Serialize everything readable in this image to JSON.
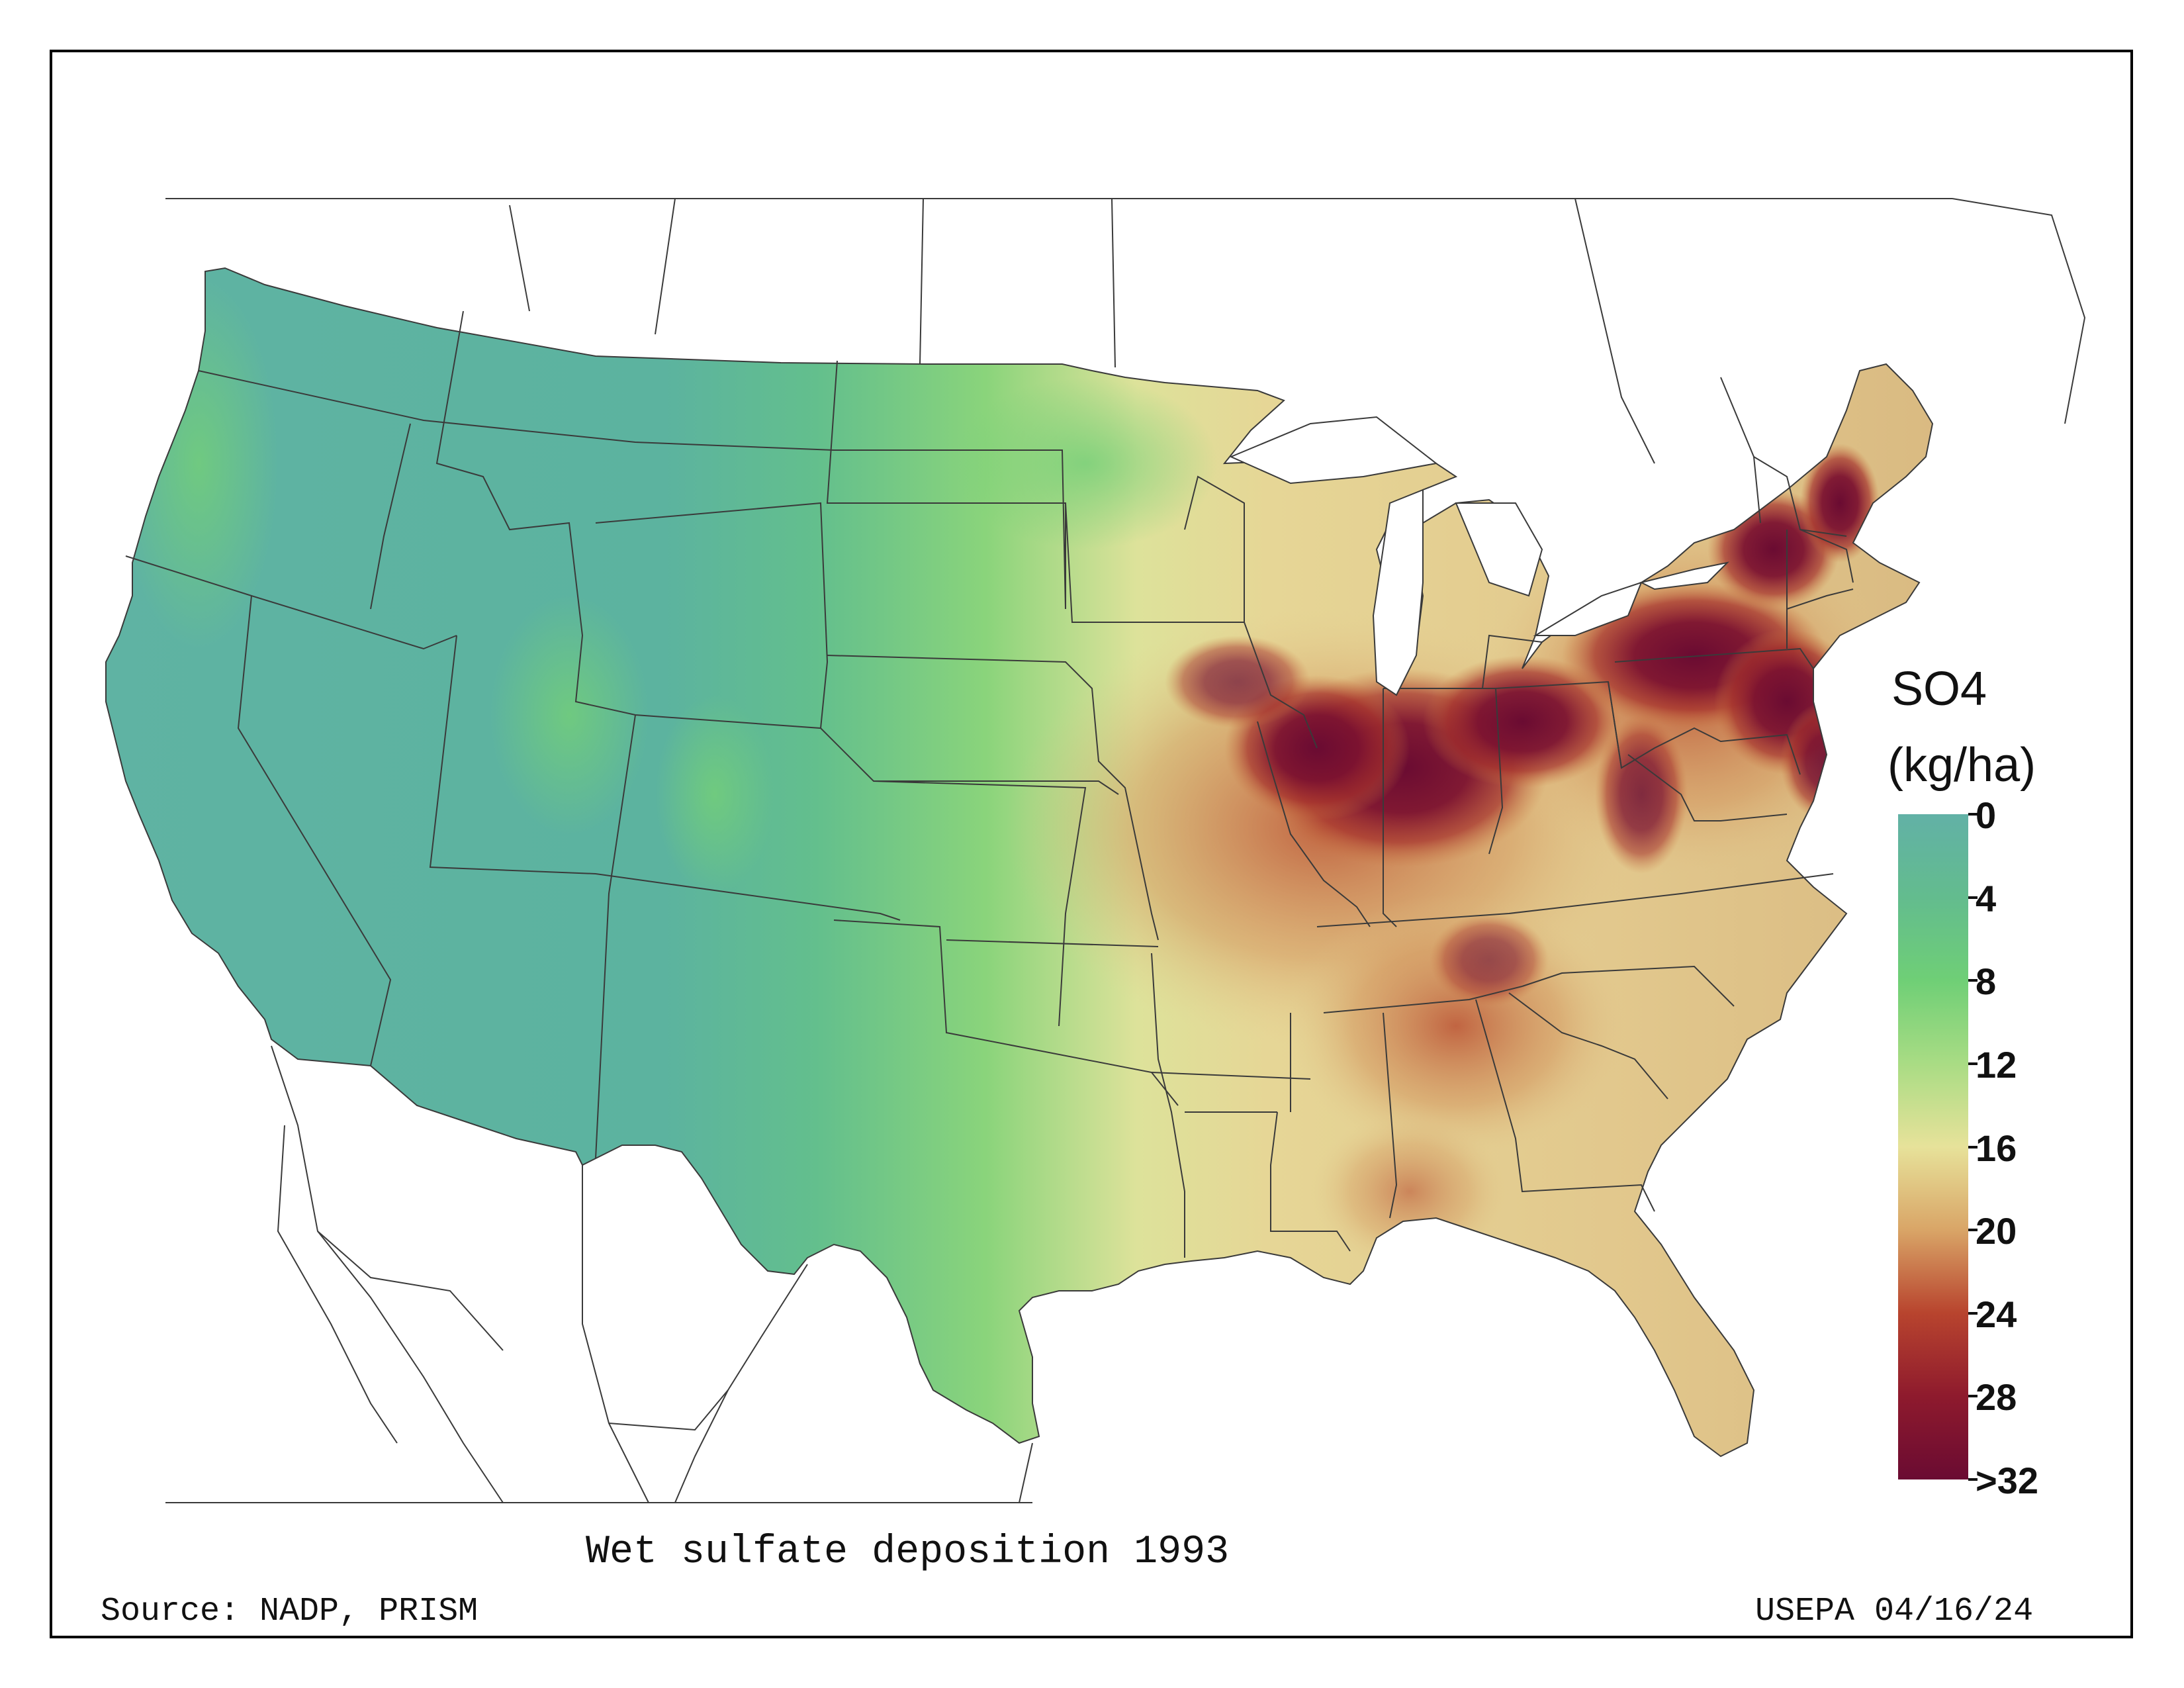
{
  "map": {
    "title": "Wet sulfate deposition 1993",
    "source": "Source: NADP, PRISM",
    "credit": "USEPA 04/16/24",
    "region": "Contiguous United States"
  },
  "legend": {
    "title_line1": "SO4",
    "title_line2": "(kg/ha)",
    "ticks": [
      "0",
      "4",
      "8",
      "12",
      "16",
      "20",
      "24",
      "28",
      ">32"
    ],
    "color_stops": [
      "#62b1a6",
      "#63bc8e",
      "#6fcf76",
      "#a9dc84",
      "#e7e29a",
      "#d9a567",
      "#b8442e",
      "#8e1a2d",
      "#6a0b32"
    ]
  }
}
